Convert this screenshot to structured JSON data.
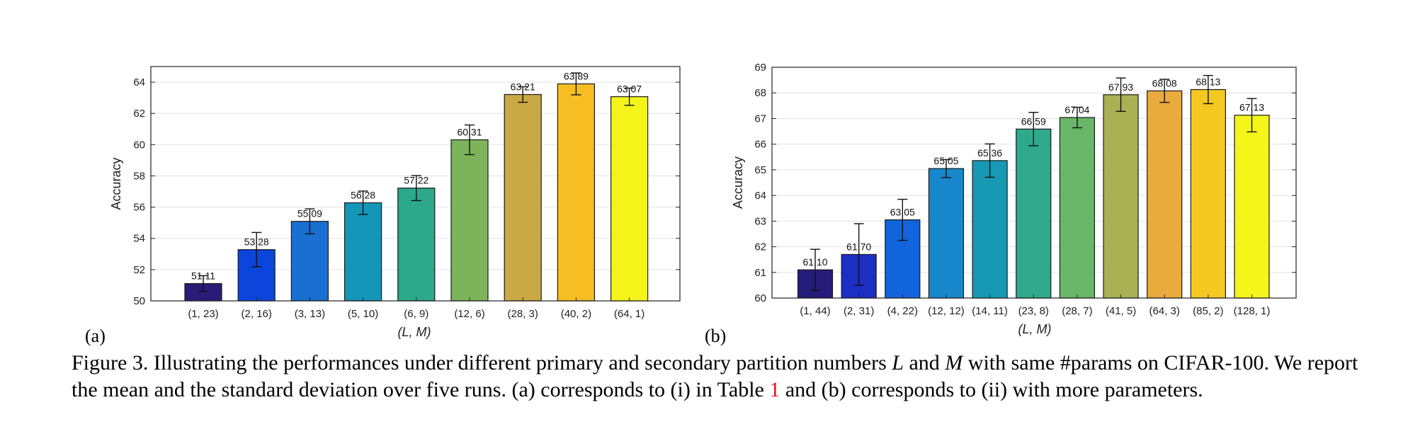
{
  "chart_data": [
    {
      "type": "bar",
      "panel": "(a)",
      "xlabel": "(L, M)",
      "ylabel": "Accuracy",
      "ylim": [
        50,
        65
      ],
      "yticks": [
        50,
        52,
        54,
        56,
        58,
        60,
        62,
        64
      ],
      "grid": true,
      "categories": [
        "(1, 23)",
        "(2, 16)",
        "(3, 13)",
        "(5, 10)",
        "(6, 9)",
        "(12, 6)",
        "(28, 3)",
        "(40, 2)",
        "(64, 1)"
      ],
      "values": [
        51.11,
        53.28,
        55.09,
        56.28,
        57.22,
        60.31,
        63.21,
        63.89,
        63.07
      ],
      "value_labels": [
        "51.11",
        "53.28",
        "55.09",
        "56.28",
        "57.22",
        "60.31",
        "63.21",
        "63.89",
        "63.07"
      ],
      "errors": [
        0.5,
        1.1,
        0.8,
        0.75,
        0.8,
        0.95,
        0.5,
        0.7,
        0.55
      ],
      "colors": [
        "#2a1b78",
        "#0b45dc",
        "#1a6fd0",
        "#1496b8",
        "#2ca88a",
        "#7db35a",
        "#c9a944",
        "#f6be22",
        "#f4f41a"
      ]
    },
    {
      "type": "bar",
      "panel": "(b)",
      "xlabel": "(L, M)",
      "ylabel": "Accuracy",
      "ylim": [
        60,
        69
      ],
      "yticks": [
        60,
        61,
        62,
        63,
        64,
        65,
        66,
        67,
        68,
        69
      ],
      "grid": true,
      "categories": [
        "(1, 44)",
        "(2, 31)",
        "(4, 22)",
        "(12, 12)",
        "(14, 11)",
        "(23, 8)",
        "(28, 7)",
        "(41, 5)",
        "(64, 3)",
        "(85, 2)",
        "(128, 1)"
      ],
      "values": [
        61.1,
        61.7,
        63.05,
        65.05,
        65.36,
        66.59,
        67.04,
        67.93,
        68.08,
        68.13,
        67.13
      ],
      "value_labels": [
        "61.10",
        "61.70",
        "63.05",
        "65.05",
        "65.36",
        "66.59",
        "67.04",
        "67.93",
        "68.08",
        "68.13",
        "67.13"
      ],
      "errors": [
        0.8,
        1.2,
        0.8,
        0.35,
        0.65,
        0.65,
        0.4,
        0.65,
        0.45,
        0.55,
        0.65
      ],
      "colors": [
        "#261c7a",
        "#1c2ec4",
        "#1264dc",
        "#1888cc",
        "#1799b4",
        "#2ea98c",
        "#69b569",
        "#a9b154",
        "#e9ab3c",
        "#f4c820",
        "#f4f51a"
      ]
    }
  ],
  "caption": {
    "prefix": "Figure 3. Illustrating the performances under different primary and secondary partition numbers ",
    "var1": "L",
    "and": " and ",
    "var2": "M",
    "middle": " with same #params on CIFAR-100. We report the mean and the standard deviation over five runs. (a) corresponds to (i) in Table ",
    "ref": "1",
    "suffix": " and (b) corresponds to (ii) with more parameters."
  }
}
